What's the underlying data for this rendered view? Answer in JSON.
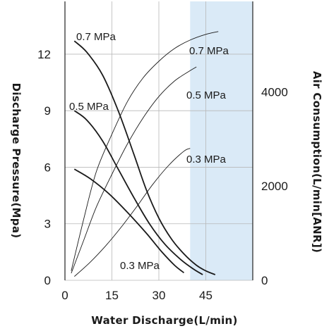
{
  "chart_data": {
    "type": "line",
    "xlabel": "Water Discharge(L/min)",
    "ylabel_left": "Discharge Pressure(Mpa)",
    "ylabel_right": "Air Consumption(L/min[ANR])",
    "x_ticks": [
      "0",
      "15",
      "30",
      "45"
    ],
    "y_left_ticks": [
      "0",
      "3",
      "6",
      "9",
      "12"
    ],
    "y_right_ticks": [
      "0",
      "2000",
      "4000"
    ],
    "xlim": [
      0,
      60
    ],
    "ylim_left": [
      0,
      14.8
    ],
    "ylim_right": [
      0,
      5920
    ],
    "highlight_region": {
      "x": [
        40,
        60
      ],
      "color": "#daeaf7"
    },
    "pressure_series": [
      {
        "name": "0.7 MPa",
        "x": [
          3,
          7,
          12,
          17,
          22,
          26,
          30,
          34,
          38,
          42,
          45,
          48
        ],
        "y": [
          12.7,
          12.1,
          10.9,
          9.0,
          6.7,
          4.8,
          3.3,
          2.2,
          1.4,
          0.8,
          0.5,
          0.3
        ]
      },
      {
        "name": "0.5 MPa",
        "x": [
          3,
          7,
          12,
          17,
          22,
          27,
          32,
          37,
          41,
          44
        ],
        "y": [
          9.0,
          8.5,
          7.4,
          5.9,
          4.4,
          3.0,
          1.9,
          1.1,
          0.6,
          0.3
        ]
      },
      {
        "name": "0.3 MPa",
        "x": [
          3,
          8,
          14,
          20,
          26,
          31,
          35,
          38
        ],
        "y": [
          5.9,
          5.4,
          4.6,
          3.6,
          2.5,
          1.5,
          0.8,
          0.4
        ]
      }
    ],
    "air_series": [
      {
        "name": "0.7 MPa",
        "x": [
          2,
          6,
          10,
          15,
          20,
          25,
          30,
          35,
          40,
          45,
          49
        ],
        "y": [
          200,
          1300,
          2300,
          3100,
          3800,
          4300,
          4650,
          4920,
          5100,
          5220,
          5280
        ]
      },
      {
        "name": "0.5 MPa",
        "x": [
          2,
          6,
          10,
          15,
          20,
          25,
          30,
          35,
          40,
          42
        ],
        "y": [
          150,
          850,
          1550,
          2250,
          2900,
          3450,
          3900,
          4230,
          4450,
          4530
        ]
      },
      {
        "name": "0.3 MPa",
        "x": [
          3,
          8,
          13,
          18,
          23,
          28,
          33,
          38,
          40
        ],
        "y": [
          80,
          380,
          730,
          1130,
          1570,
          2030,
          2430,
          2740,
          2800
        ]
      }
    ],
    "curve_labels": [
      "0.7 MPa",
      "0.5 MPa",
      "0.3 MPa",
      "0.7 MPa",
      "0.5 MPa",
      "0.3 MPa"
    ]
  }
}
